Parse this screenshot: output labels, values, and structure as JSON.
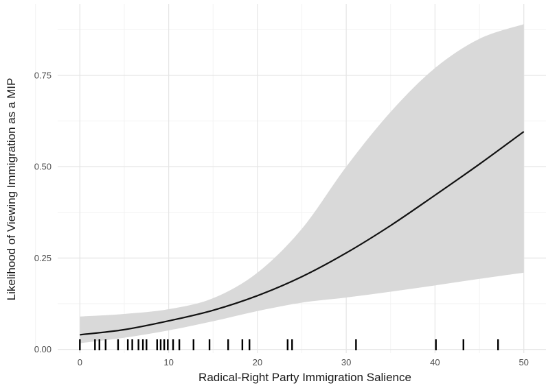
{
  "chart_data": {
    "type": "line",
    "title": "",
    "xlabel": "Radical-Right Party Immigration Salience",
    "ylabel": "Likelihood of Viewing Immigration as a MIP",
    "xlim": [
      -2.5,
      52.5
    ],
    "ylim": [
      -0.01,
      0.945
    ],
    "x_ticks": [
      0,
      10,
      20,
      30,
      40,
      50
    ],
    "x_tick_labels": [
      "0",
      "10",
      "20",
      "30",
      "40",
      "50"
    ],
    "y_ticks": [
      0.0,
      0.25,
      0.5,
      0.75
    ],
    "y_tick_labels": [
      "0.00",
      "0.25",
      "0.50",
      "0.75"
    ],
    "grid": true,
    "legend": "none",
    "series": [
      {
        "kind": "fitted-line",
        "x": [
          0,
          5,
          10,
          15,
          20,
          25,
          30,
          35,
          40,
          45,
          50
        ],
        "y": [
          0.04,
          0.054,
          0.078,
          0.107,
          0.147,
          0.199,
          0.264,
          0.339,
          0.422,
          0.507,
          0.596
        ]
      },
      {
        "kind": "confidence-band",
        "x": [
          0,
          5,
          10,
          15,
          20,
          25,
          30,
          35,
          40,
          45,
          50
        ],
        "lower": [
          0.017,
          0.032,
          0.052,
          0.077,
          0.105,
          0.128,
          0.142,
          0.158,
          0.175,
          0.193,
          0.21
        ],
        "upper": [
          0.09,
          0.097,
          0.11,
          0.14,
          0.21,
          0.33,
          0.5,
          0.65,
          0.77,
          0.85,
          0.89
        ]
      },
      {
        "kind": "rug",
        "x": [
          0,
          1.7,
          2.2,
          2.9,
          4.3,
          5.4,
          5.9,
          6.6,
          7.1,
          7.5,
          8.7,
          9.1,
          9.5,
          9.9,
          10.5,
          11.2,
          12.8,
          14.6,
          16.7,
          18.3,
          19.1,
          23.4,
          23.9,
          31.1,
          40.1,
          43.2,
          47.1
        ]
      }
    ],
    "colors": {
      "panel": "#ffffff",
      "grid_major": "#e6e6e6",
      "grid_minor": "#f2f2f2",
      "ribbon": "#d9d9d9",
      "line": "#111111",
      "rug": "#000000"
    }
  }
}
